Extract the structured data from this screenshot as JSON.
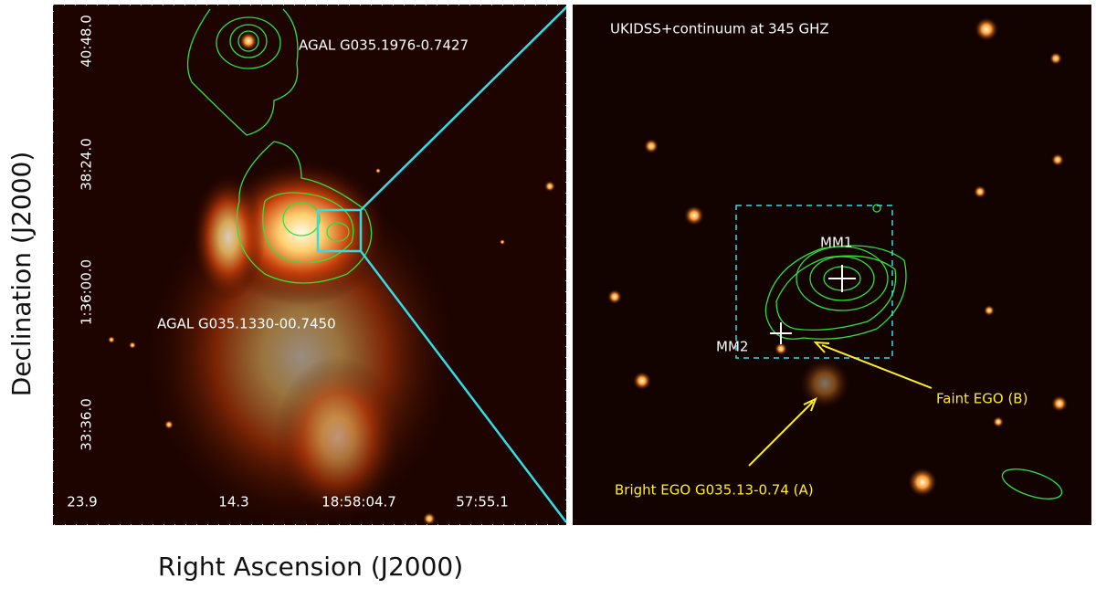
{
  "left_panel": {
    "x_axis_label": "Right Ascension (J2000)",
    "y_axis_label": "Declination (J2000)",
    "x_tick_labels": [
      "23.9",
      "14.3",
      "18:58:04.7",
      "57:55.1"
    ],
    "y_tick_labels": [
      "40:48.0",
      "38:24.0",
      "1:36:00.0",
      "33:36.0"
    ],
    "annotations": [
      "AGAL G035.1976-0.7427",
      "AGAL G035.1330-00.7450"
    ]
  },
  "right_panel": {
    "title": "UKIDSS+continuum at 345 GHZ",
    "sources": [
      "MM1",
      "MM2"
    ],
    "annotations": [
      "Faint EGO (B)",
      "Bright EGO G035.13-0.74 (A)"
    ]
  }
}
